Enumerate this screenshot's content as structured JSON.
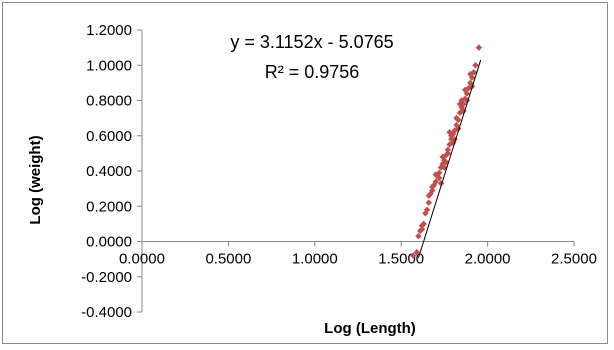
{
  "chart_data": {
    "type": "scatter",
    "xlabel": "Log (Length)",
    "ylabel": "Log (weight)",
    "xlim": [
      0,
      2.5
    ],
    "ylim": [
      -0.4,
      1.2
    ],
    "x_ticks": [
      "0.0000",
      "0.5000",
      "1.0000",
      "1.5000",
      "2.0000",
      "2.5000"
    ],
    "y_ticks": [
      "1.2000",
      "1.0000",
      "0.8000",
      "0.6000",
      "0.4000",
      "0.2000",
      "0.0000",
      "-0.2000",
      "-0.4000"
    ],
    "x_tick_values": [
      0,
      0.5,
      1.0,
      1.5,
      2.0,
      2.5
    ],
    "y_tick_values": [
      1.2,
      1.0,
      0.8,
      0.6,
      0.4,
      0.2,
      0.0,
      -0.2,
      -0.4
    ],
    "trendline": {
      "equation": "y = 3.1152x - 5.0765",
      "r_squared": "R² = 0.9756",
      "slope": 3.1152,
      "intercept": -5.0765,
      "x_range": [
        1.6,
        1.96
      ]
    },
    "grid": false,
    "legend": "none",
    "marker_color": "#c0504d",
    "line_color": "#000000",
    "series": [
      {
        "x": [
          1.57,
          1.59,
          1.6,
          1.61,
          1.62,
          1.63,
          1.64,
          1.65,
          1.66,
          1.67,
          1.68,
          1.69,
          1.7,
          1.71,
          1.72,
          1.73,
          1.74,
          1.75,
          1.76,
          1.77,
          1.78,
          1.79,
          1.8,
          1.81,
          1.82,
          1.83,
          1.84,
          1.85,
          1.86,
          1.87,
          1.88,
          1.89,
          1.9,
          1.91,
          1.92,
          1.93,
          1.95,
          1.62,
          1.66,
          1.68,
          1.7,
          1.72,
          1.74,
          1.75,
          1.77,
          1.79,
          1.8,
          1.82,
          1.83,
          1.85,
          1.86,
          1.87,
          1.88,
          1.9,
          1.91,
          1.76,
          1.78,
          1.81,
          1.84,
          1.73
        ],
        "y": [
          -0.08,
          -0.06,
          0.03,
          0.06,
          0.09,
          0.1,
          0.16,
          0.18,
          0.22,
          0.27,
          0.29,
          0.32,
          0.34,
          0.37,
          0.39,
          0.42,
          0.44,
          0.46,
          0.49,
          0.52,
          0.55,
          0.58,
          0.61,
          0.63,
          0.66,
          0.69,
          0.73,
          0.76,
          0.78,
          0.81,
          0.84,
          0.87,
          0.9,
          0.93,
          0.96,
          1.0,
          1.1,
          0.07,
          0.26,
          0.31,
          0.38,
          0.36,
          0.48,
          0.42,
          0.5,
          0.6,
          0.56,
          0.7,
          0.64,
          0.8,
          0.74,
          0.86,
          0.8,
          0.95,
          0.88,
          0.45,
          0.62,
          0.58,
          0.78,
          0.33
        ]
      }
    ]
  }
}
